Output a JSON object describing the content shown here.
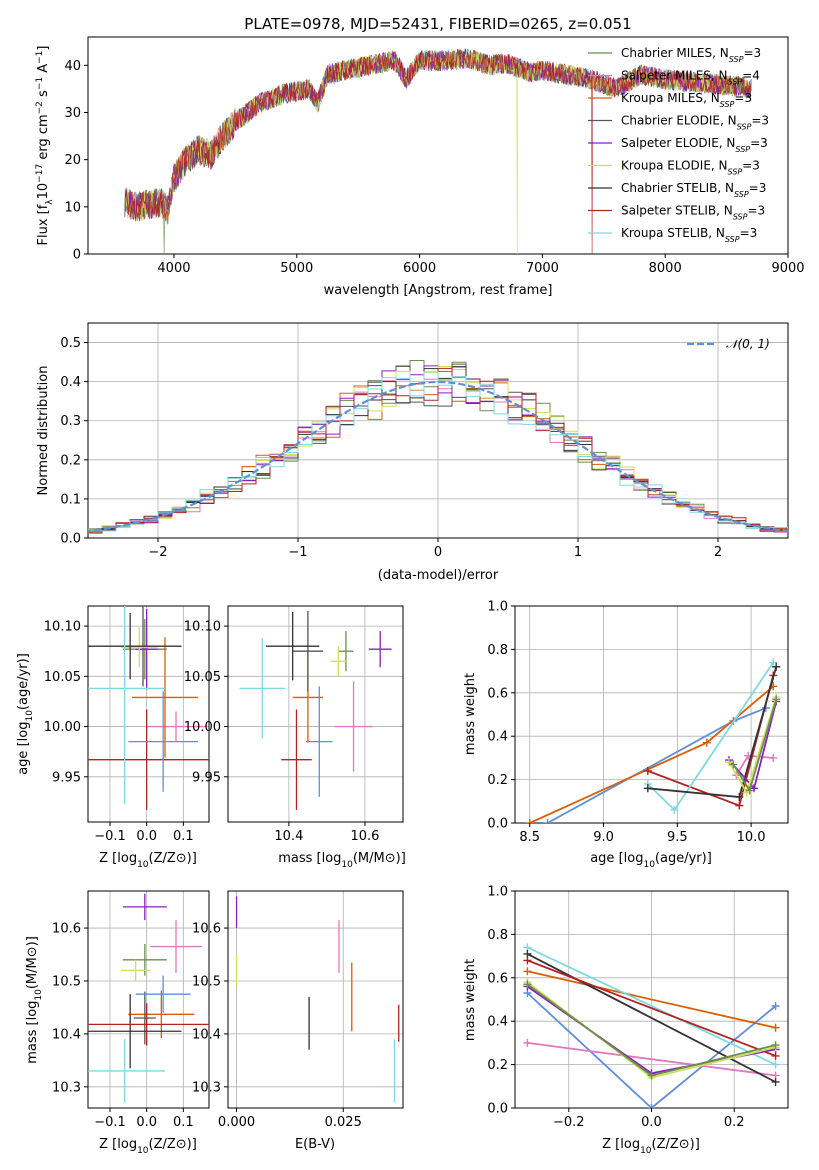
{
  "colors": {
    "Chabrier MILES": "#6b8f4e",
    "Salpeter MILES": "#e377c2",
    "Kroupa MILES": "#d95f02",
    "Chabrier ELODIE": "#555555",
    "Salpeter ELODIE": "#8c1fbf",
    "Kroupa ELODIE": "#cde05a",
    "Chabrier STELIB": "#333333",
    "Salpeter STELIB": "#b22222",
    "Kroupa STELIB": "#7fd8e0",
    "gauss": "#5f8fd9",
    "blue": "#5f8fd9"
  },
  "chart_data": [
    {
      "id": "spectrum",
      "type": "line",
      "title": "PLATE=0978, MJD=52431, FIBERID=0265, z=0.051",
      "xlabel": "wavelength [Angstrom, rest frame]",
      "ylabel": "Flux [f",
      "xlim": [
        3300,
        9000
      ],
      "ylim": [
        0,
        46
      ],
      "xticks": [
        4000,
        5000,
        6000,
        7000,
        8000,
        9000
      ],
      "yticks": [
        0,
        10,
        20,
        30,
        40
      ],
      "legend_position": "right",
      "legend": [
        {
          "name": "Chabrier MILES",
          "nssp": "3"
        },
        {
          "name": "Salpeter MILES",
          "nssp": "4"
        },
        {
          "name": "Kroupa MILES",
          "nssp": "3"
        },
        {
          "name": "Chabrier ELODIE",
          "nssp": "3"
        },
        {
          "name": "Salpeter ELODIE",
          "nssp": "3"
        },
        {
          "name": "Kroupa ELODIE",
          "nssp": "3"
        },
        {
          "name": "Chabrier STELIB",
          "nssp": "3"
        },
        {
          "name": "Salpeter STELIB",
          "nssp": "3"
        },
        {
          "name": "Kroupa STELIB",
          "nssp": "3"
        }
      ],
      "continuum": [
        [
          3600,
          11
        ],
        [
          3700,
          10
        ],
        [
          3800,
          10.5
        ],
        [
          3900,
          11
        ],
        [
          3950,
          9
        ],
        [
          4000,
          16
        ],
        [
          4100,
          20
        ],
        [
          4200,
          22
        ],
        [
          4300,
          21
        ],
        [
          4400,
          25
        ],
        [
          4500,
          28
        ],
        [
          4600,
          30
        ],
        [
          4700,
          32
        ],
        [
          4800,
          33
        ],
        [
          4900,
          34
        ],
        [
          5000,
          34.5
        ],
        [
          5100,
          35
        ],
        [
          5170,
          32
        ],
        [
          5250,
          38
        ],
        [
          5400,
          39
        ],
        [
          5600,
          40
        ],
        [
          5800,
          41
        ],
        [
          5890,
          37
        ],
        [
          6000,
          41
        ],
        [
          6200,
          41
        ],
        [
          6400,
          41.5
        ],
        [
          6563,
          40
        ],
        [
          6700,
          40.5
        ],
        [
          6900,
          38.5
        ],
        [
          7000,
          39
        ],
        [
          7200,
          38
        ],
        [
          7400,
          37
        ],
        [
          7600,
          35
        ],
        [
          7700,
          36.5
        ],
        [
          7800,
          38
        ],
        [
          8000,
          37
        ],
        [
          8200,
          36.5
        ],
        [
          8400,
          36
        ],
        [
          8600,
          35.5
        ],
        [
          8700,
          35
        ]
      ]
    },
    {
      "id": "residuals",
      "type": "bar",
      "xlabel": "(data-model)/error",
      "ylabel": "Normed distribution",
      "xlim": [
        -2.5,
        2.5
      ],
      "ylim": [
        0,
        0.55
      ],
      "xticks": [
        -2,
        -1,
        0,
        1,
        2
      ],
      "yticks": [
        0.0,
        0.1,
        0.2,
        0.3,
        0.4,
        0.5
      ],
      "legend_position": "top-right",
      "gauss_label": "𝒩(0, 1)"
    },
    {
      "id": "Z-age",
      "type": "scatter",
      "xlabel": "Z [log",
      "ylabel": "age  [log",
      "xlim": [
        -0.16,
        0.17
      ],
      "ylim": [
        9.905,
        10.12
      ],
      "xticks": [
        -0.1,
        0.0,
        0.1
      ],
      "yticks": [
        9.95,
        10.0,
        10.05,
        10.1
      ],
      "points": [
        {
          "s": "Chabrier MILES",
          "x": -0.005,
          "y": 10.077,
          "xe": 0.06,
          "ye": 0.03
        },
        {
          "s": "Salpeter MILES",
          "x": 0.08,
          "y": 10.0,
          "xe": 0.08,
          "ye": 0.015
        },
        {
          "s": "Kroupa MILES",
          "x": 0.05,
          "y": 10.029,
          "xe": 0.09,
          "ye": 0.06
        },
        {
          "s": "Chabrier ELODIE",
          "x": -0.01,
          "y": 10.08,
          "xe": 0.04,
          "ye": 0.04
        },
        {
          "s": "Salpeter ELODIE",
          "x": 0.0,
          "y": 10.077,
          "xe": 0.03,
          "ye": 0.04
        },
        {
          "s": "Kroupa ELODIE",
          "x": -0.02,
          "y": 10.079,
          "xe": 0.05,
          "ye": 0.02
        },
        {
          "s": "Chabrier STELIB",
          "x": -0.045,
          "y": 10.08,
          "xe": 0.14,
          "ye": 0.033
        },
        {
          "s": "Salpeter STELIB",
          "x": 0.0,
          "y": 9.967,
          "xe": 0.17,
          "ye": 0.05
        },
        {
          "s": "Kroupa STELIB",
          "x": -0.06,
          "y": 10.038,
          "xe": 0.11,
          "ye": 0.115
        },
        {
          "s": "blue",
          "x": 0.045,
          "y": 9.985,
          "xe": 0.095,
          "ye": 0.05
        }
      ]
    },
    {
      "id": "mass-age",
      "type": "scatter",
      "xlabel": "mass [log",
      "ylabel": "",
      "xlim": [
        10.24,
        10.7
      ],
      "ylim": [
        9.905,
        10.12
      ],
      "xticks": [
        10.4,
        10.6
      ],
      "yticks": [
        9.95,
        10.0,
        10.05,
        10.1
      ],
      "points": [
        {
          "s": "Chabrier MILES",
          "x": 10.55,
          "y": 10.075,
          "xe": 0.02,
          "ye": 0.02
        },
        {
          "s": "Salpeter MILES",
          "x": 10.57,
          "y": 10.0,
          "xe": 0.05,
          "ye": 0.045
        },
        {
          "s": "Kroupa MILES",
          "x": 10.45,
          "y": 10.029,
          "xe": 0.04,
          "ye": 0.045
        },
        {
          "s": "Chabrier ELODIE",
          "x": 10.45,
          "y": 10.075,
          "xe": 0.04,
          "ye": 0.04
        },
        {
          "s": "Salpeter ELODIE",
          "x": 10.64,
          "y": 10.077,
          "xe": 0.03,
          "ye": 0.018
        },
        {
          "s": "Kroupa ELODIE",
          "x": 10.53,
          "y": 10.065,
          "xe": 0.02,
          "ye": 0.015
        },
        {
          "s": "Chabrier STELIB",
          "x": 10.41,
          "y": 10.08,
          "xe": 0.07,
          "ye": 0.034
        },
        {
          "s": "Salpeter STELIB",
          "x": 10.42,
          "y": 9.967,
          "xe": 0.04,
          "ye": 0.05
        },
        {
          "s": "Kroupa STELIB",
          "x": 10.33,
          "y": 10.038,
          "xe": 0.06,
          "ye": 0.05
        },
        {
          "s": "blue",
          "x": 10.48,
          "y": 9.985,
          "xe": 0.035,
          "ye": 0.055
        }
      ]
    },
    {
      "id": "age-weight",
      "type": "line",
      "xlabel": "age  [log",
      "ylabel": "mass weight",
      "xlim": [
        8.4,
        10.25
      ],
      "ylim": [
        0,
        1
      ],
      "xticks": [
        8.5,
        9.0,
        9.5,
        10.0
      ],
      "yticks": [
        0.0,
        0.2,
        0.4,
        0.6,
        0.8,
        1.0
      ],
      "series": [
        {
          "s": "blue",
          "pts": [
            [
              8.62,
              0.0
            ],
            [
              9.88,
              0.47
            ],
            [
              10.1,
              0.53
            ]
          ]
        },
        {
          "s": "Kroupa MILES",
          "pts": [
            [
              8.5,
              0.0
            ],
            [
              9.7,
              0.37
            ],
            [
              10.15,
              0.63
            ]
          ]
        },
        {
          "s": "Salpeter MILES",
          "pts": [
            [
              9.9,
              0.22
            ],
            [
              9.98,
              0.31
            ],
            [
              10.15,
              0.3
            ]
          ]
        },
        {
          "s": "Salpeter STELIB",
          "pts": [
            [
              9.3,
              0.24
            ],
            [
              9.92,
              0.08
            ],
            [
              10.15,
              0.68
            ]
          ]
        },
        {
          "s": "Kroupa STELIB",
          "pts": [
            [
              9.3,
              0.18
            ],
            [
              9.48,
              0.06
            ],
            [
              10.15,
              0.74
            ]
          ]
        },
        {
          "s": "Chabrier STELIB",
          "pts": [
            [
              9.3,
              0.16
            ],
            [
              9.92,
              0.12
            ],
            [
              10.17,
              0.72
            ]
          ]
        },
        {
          "s": "Salpeter ELODIE",
          "pts": [
            [
              9.85,
              0.29
            ],
            [
              10.02,
              0.16
            ],
            [
              10.17,
              0.56
            ]
          ]
        },
        {
          "s": "Kroupa ELODIE",
          "pts": [
            [
              9.85,
              0.28
            ],
            [
              9.97,
              0.14
            ],
            [
              10.17,
              0.58
            ]
          ]
        },
        {
          "s": "Chabrier MILES",
          "pts": [
            [
              9.88,
              0.27
            ],
            [
              9.99,
              0.15
            ],
            [
              10.17,
              0.57
            ]
          ]
        }
      ]
    },
    {
      "id": "Z-mass",
      "type": "scatter",
      "xlabel": "Z [log",
      "ylabel": "mass [log",
      "xlim": [
        -0.16,
        0.17
      ],
      "ylim": [
        10.26,
        10.67
      ],
      "xticks": [
        -0.1,
        0.0,
        0.1
      ],
      "yticks": [
        10.3,
        10.4,
        10.5,
        10.6
      ],
      "points": [
        {
          "s": "Chabrier MILES",
          "x": -0.005,
          "y": 10.54,
          "xe": 0.06,
          "ye": 0.03
        },
        {
          "s": "Salpeter MILES",
          "x": 0.08,
          "y": 10.565,
          "xe": 0.07,
          "ye": 0.05
        },
        {
          "s": "Kroupa MILES",
          "x": 0.04,
          "y": 10.437,
          "xe": 0.09,
          "ye": 0.045
        },
        {
          "s": "Chabrier ELODIE",
          "x": -0.005,
          "y": 10.43,
          "xe": 0.03,
          "ye": 0.05
        },
        {
          "s": "Salpeter ELODIE",
          "x": -0.005,
          "y": 10.64,
          "xe": 0.06,
          "ye": 0.025
        },
        {
          "s": "Kroupa ELODIE",
          "x": -0.03,
          "y": 10.52,
          "xe": 0.04,
          "ye": 0.02
        },
        {
          "s": "Chabrier STELIB",
          "x": -0.045,
          "y": 10.405,
          "xe": 0.14,
          "ye": 0.07
        },
        {
          "s": "Salpeter STELIB",
          "x": 0.0,
          "y": 10.418,
          "xe": 0.17,
          "ye": 0.04
        },
        {
          "s": "Kroupa STELIB",
          "x": -0.06,
          "y": 10.33,
          "xe": 0.11,
          "ye": 0.06
        },
        {
          "s": "blue",
          "x": 0.045,
          "y": 10.475,
          "xe": 0.075,
          "ye": 0.035
        }
      ]
    },
    {
      "id": "ebv-mass",
      "type": "scatter",
      "xlabel": "E(B-V)",
      "ylabel": "",
      "xlim": [
        -0.002,
        0.039
      ],
      "ylim": [
        10.26,
        10.67
      ],
      "xticks": [
        0.0,
        0.025
      ],
      "yticks": [
        10.3,
        10.4,
        10.5,
        10.6
      ],
      "points": [
        {
          "s": "Salpeter ELODIE",
          "x": 0.0,
          "y": 10.63,
          "xe": 0,
          "ye": 0.03
        },
        {
          "s": "Kroupa ELODIE",
          "x": 0.0,
          "y": 10.52,
          "xe": 0,
          "ye": 0.03
        },
        {
          "s": "Salpeter MILES",
          "x": 0.024,
          "y": 10.565,
          "xe": 0,
          "ye": 0.05
        },
        {
          "s": "Kroupa MILES",
          "x": 0.027,
          "y": 10.47,
          "xe": 0,
          "ye": 0.065
        },
        {
          "s": "Chabrier STELIB",
          "x": 0.017,
          "y": 10.42,
          "xe": 0,
          "ye": 0.05
        },
        {
          "s": "Salpeter STELIB",
          "x": 0.038,
          "y": 10.42,
          "xe": 0,
          "ye": 0.035
        },
        {
          "s": "Kroupa STELIB",
          "x": 0.037,
          "y": 10.33,
          "xe": 0,
          "ye": 0.06
        }
      ]
    },
    {
      "id": "Z-weight",
      "type": "line",
      "xlabel": "Z [log",
      "ylabel": "mass weight",
      "xlim": [
        -0.33,
        0.33
      ],
      "ylim": [
        0,
        1
      ],
      "xticks": [
        -0.2,
        0.0,
        0.2
      ],
      "yticks": [
        0.0,
        0.2,
        0.4,
        0.6,
        0.8,
        1.0
      ],
      "series": [
        {
          "s": "blue",
          "pts": [
            [
              -0.3,
              0.53
            ],
            [
              0.0,
              0.0
            ],
            [
              0.3,
              0.47
            ]
          ]
        },
        {
          "s": "Kroupa MILES",
          "pts": [
            [
              -0.3,
              0.63
            ],
            [
              0.3,
              0.37
            ]
          ]
        },
        {
          "s": "Salpeter MILES",
          "pts": [
            [
              -0.3,
              0.3
            ],
            [
              0.3,
              0.15
            ]
          ]
        },
        {
          "s": "Kroupa STELIB",
          "pts": [
            [
              -0.3,
              0.74
            ],
            [
              0.3,
              0.2
            ]
          ]
        },
        {
          "s": "Chabrier STELIB",
          "pts": [
            [
              -0.3,
              0.71
            ],
            [
              0.3,
              0.12
            ]
          ]
        },
        {
          "s": "Salpeter STELIB",
          "pts": [
            [
              -0.3,
              0.68
            ],
            [
              0.3,
              0.24
            ]
          ]
        },
        {
          "s": "Salpeter ELODIE",
          "pts": [
            [
              -0.3,
              0.56
            ],
            [
              0.0,
              0.16
            ],
            [
              0.3,
              0.27
            ]
          ]
        },
        {
          "s": "Kroupa ELODIE",
          "pts": [
            [
              -0.3,
              0.58
            ],
            [
              0.0,
              0.14
            ],
            [
              0.3,
              0.28
            ]
          ]
        },
        {
          "s": "Chabrier MILES",
          "pts": [
            [
              -0.3,
              0.57
            ],
            [
              0.0,
              0.15
            ],
            [
              0.3,
              0.29
            ]
          ]
        }
      ]
    }
  ]
}
